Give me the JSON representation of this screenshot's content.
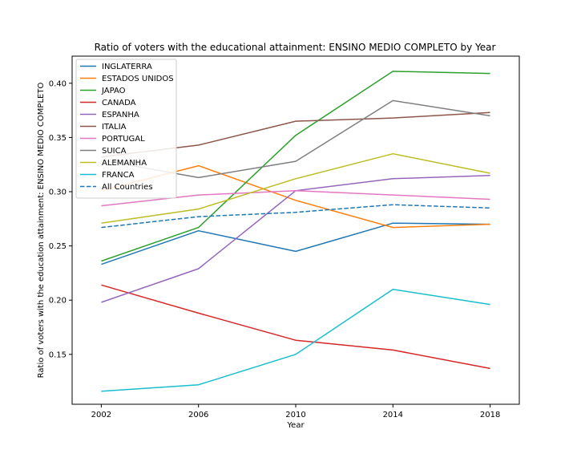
{
  "chart_data": {
    "type": "line",
    "title": "Ratio of voters with the educational attainment: ENSINO MEDIO COMPLETO by Year",
    "xlabel": "Year",
    "ylabel": "Ratio of voters with the education attainment: ENSINO MEDIO COMPLETO",
    "x": [
      2002,
      2006,
      2010,
      2014,
      2018
    ],
    "xlim": [
      2000.8,
      2019.2
    ],
    "ylim": [
      0.104,
      0.425
    ],
    "yticks": [
      0.15,
      0.2,
      0.25,
      0.3,
      0.35,
      0.4
    ],
    "grid": false,
    "legend_position": "top-left",
    "series": [
      {
        "name": "INGLATERRA",
        "color": "#1f77b4",
        "dashed": false,
        "values": [
          0.233,
          0.264,
          0.245,
          0.271,
          0.27
        ]
      },
      {
        "name": "ESTADOS UNIDOS",
        "color": "#ff7f0e",
        "dashed": false,
        "values": [
          0.301,
          0.324,
          0.292,
          0.267,
          0.27
        ]
      },
      {
        "name": "JAPAO",
        "color": "#2ca02c",
        "dashed": false,
        "values": [
          0.236,
          0.267,
          0.352,
          0.411,
          0.409
        ]
      },
      {
        "name": "CANADA",
        "color": "#d62728",
        "dashed": false,
        "values": [
          0.214,
          0.188,
          0.163,
          0.154,
          0.137
        ]
      },
      {
        "name": "ESPANHA",
        "color": "#9467bd",
        "dashed": false,
        "values": [
          0.198,
          0.229,
          0.301,
          0.312,
          0.315
        ]
      },
      {
        "name": "ITALIA",
        "color": "#8c564b",
        "dashed": false,
        "values": [
          0.332,
          0.343,
          0.365,
          0.368,
          0.373
        ]
      },
      {
        "name": "PORTUGAL",
        "color": "#e377c2",
        "dashed": false,
        "values": [
          0.287,
          0.297,
          0.301,
          0.297,
          0.293
        ]
      },
      {
        "name": "SUICA",
        "color": "#7f7f7f",
        "dashed": false,
        "values": [
          0.329,
          0.313,
          0.328,
          0.384,
          0.37
        ]
      },
      {
        "name": "ALEMANHA",
        "color": "#bcbd22",
        "dashed": false,
        "values": [
          0.271,
          0.284,
          0.312,
          0.335,
          0.317
        ]
      },
      {
        "name": "FRANCA",
        "color": "#17becf",
        "dashed": false,
        "values": [
          0.116,
          0.122,
          0.15,
          0.21,
          0.196
        ]
      },
      {
        "name": "All Countries",
        "color": "#1f77b4",
        "dashed": true,
        "values": [
          0.267,
          0.277,
          0.281,
          0.288,
          0.285
        ]
      }
    ]
  }
}
